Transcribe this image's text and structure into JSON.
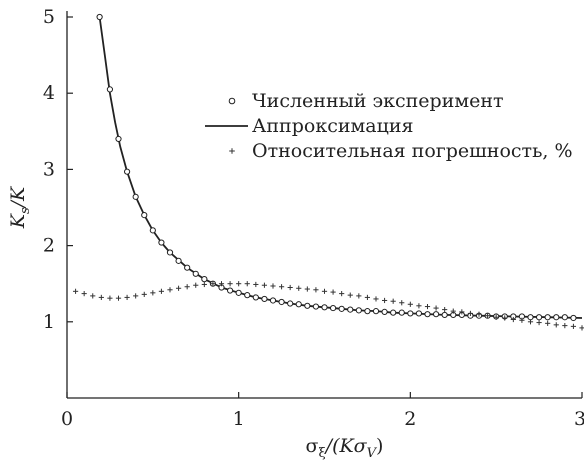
{
  "chart_data": {
    "type": "line",
    "xlabel": {
      "main": "σ",
      "sub": "ξ",
      "rest": "/(Kσ",
      "sub2": "V",
      "close": ")"
    },
    "ylabel": {
      "main": "K",
      "sub": "s",
      "rest": "/K"
    },
    "xlim": [
      0,
      3
    ],
    "ylim": [
      0,
      5
    ],
    "xticks": [
      0,
      1,
      2,
      3
    ],
    "yticks": [
      1,
      2,
      3,
      4,
      5
    ],
    "xtick_labels": [
      "0",
      "1",
      "2",
      "3"
    ],
    "ytick_labels": [
      "1",
      "2",
      "3",
      "4",
      "5"
    ],
    "legend_position": "upper-right",
    "series": [
      {
        "name": "Численный эксперимент",
        "marker": "circle",
        "x": [
          0.19,
          0.25,
          0.3,
          0.35,
          0.4,
          0.45,
          0.5,
          0.55,
          0.6,
          0.65,
          0.7,
          0.75,
          0.8,
          0.85,
          0.9,
          0.95,
          1.0,
          1.05,
          1.1,
          1.15,
          1.2,
          1.25,
          1.3,
          1.35,
          1.4,
          1.45,
          1.5,
          1.55,
          1.6,
          1.65,
          1.7,
          1.75,
          1.8,
          1.85,
          1.9,
          1.95,
          2.0,
          2.05,
          2.1,
          2.15,
          2.2,
          2.25,
          2.3,
          2.35,
          2.4,
          2.45,
          2.5,
          2.55,
          2.6,
          2.65,
          2.7,
          2.75,
          2.8,
          2.85,
          2.9,
          2.95
        ],
        "y": [
          5.0,
          4.05,
          3.4,
          2.97,
          2.64,
          2.4,
          2.2,
          2.04,
          1.91,
          1.8,
          1.71,
          1.63,
          1.56,
          1.5,
          1.45,
          1.41,
          1.38,
          1.35,
          1.32,
          1.3,
          1.28,
          1.26,
          1.24,
          1.23,
          1.21,
          1.2,
          1.19,
          1.18,
          1.17,
          1.16,
          1.15,
          1.14,
          1.14,
          1.13,
          1.12,
          1.12,
          1.11,
          1.11,
          1.1,
          1.1,
          1.09,
          1.09,
          1.09,
          1.08,
          1.08,
          1.08,
          1.07,
          1.07,
          1.07,
          1.07,
          1.06,
          1.06,
          1.06,
          1.06,
          1.06,
          1.05
        ]
      },
      {
        "name": "Аппроксимация",
        "marker": "line",
        "x": [
          0.19,
          0.22,
          0.25,
          0.28,
          0.31,
          0.35,
          0.4,
          0.45,
          0.5,
          0.55,
          0.6,
          0.7,
          0.8,
          0.9,
          1.0,
          1.1,
          1.2,
          1.3,
          1.4,
          1.5,
          1.6,
          1.7,
          1.8,
          1.9,
          2.0,
          2.2,
          2.4,
          2.6,
          2.8,
          3.0
        ],
        "y": [
          5.0,
          4.5,
          4.0,
          3.62,
          3.3,
          2.97,
          2.64,
          2.4,
          2.2,
          2.04,
          1.91,
          1.71,
          1.56,
          1.45,
          1.38,
          1.32,
          1.28,
          1.24,
          1.21,
          1.19,
          1.17,
          1.15,
          1.14,
          1.12,
          1.11,
          1.09,
          1.08,
          1.07,
          1.06,
          1.05
        ]
      },
      {
        "name": "Относительная погрешность, %",
        "marker": "plus",
        "x": [
          0.05,
          0.1,
          0.15,
          0.2,
          0.25,
          0.3,
          0.35,
          0.4,
          0.45,
          0.5,
          0.55,
          0.6,
          0.65,
          0.7,
          0.75,
          0.8,
          0.85,
          0.9,
          0.95,
          1.0,
          1.05,
          1.1,
          1.15,
          1.2,
          1.25,
          1.3,
          1.35,
          1.4,
          1.45,
          1.5,
          1.55,
          1.6,
          1.65,
          1.7,
          1.75,
          1.8,
          1.85,
          1.9,
          1.95,
          2.0,
          2.05,
          2.1,
          2.15,
          2.2,
          2.25,
          2.3,
          2.35,
          2.4,
          2.45,
          2.5,
          2.55,
          2.6,
          2.65,
          2.7,
          2.75,
          2.8,
          2.85,
          2.9,
          2.95,
          3.0
        ],
        "y": [
          1.4,
          1.37,
          1.34,
          1.32,
          1.31,
          1.31,
          1.32,
          1.34,
          1.36,
          1.38,
          1.4,
          1.42,
          1.44,
          1.46,
          1.48,
          1.49,
          1.5,
          1.5,
          1.5,
          1.5,
          1.5,
          1.49,
          1.48,
          1.47,
          1.46,
          1.45,
          1.44,
          1.43,
          1.42,
          1.4,
          1.39,
          1.37,
          1.35,
          1.34,
          1.32,
          1.3,
          1.28,
          1.27,
          1.25,
          1.23,
          1.21,
          1.2,
          1.18,
          1.16,
          1.14,
          1.13,
          1.11,
          1.1,
          1.08,
          1.06,
          1.05,
          1.03,
          1.02,
          1.0,
          0.99,
          0.98,
          0.96,
          0.95,
          0.94,
          0.92
        ]
      }
    ]
  }
}
